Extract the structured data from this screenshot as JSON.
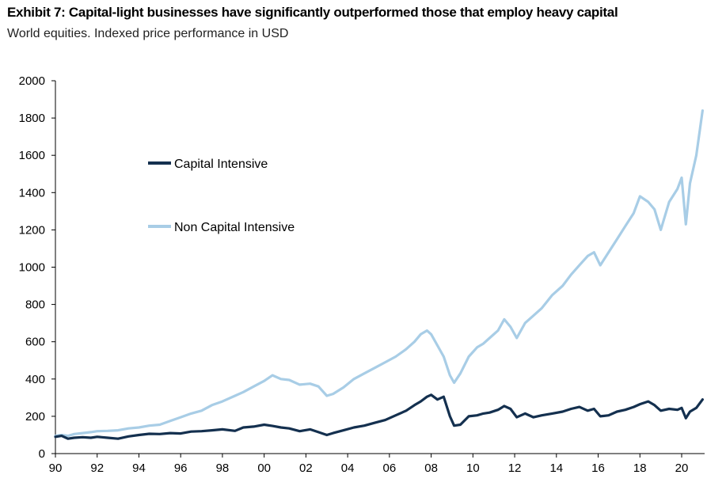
{
  "header": {
    "title": "Exhibit 7: Capital-light businesses have significantly outperformed those that employ heavy capital",
    "subtitle": "World equities. Indexed price performance in USD"
  },
  "colors": {
    "capital_intensive": "#14304f",
    "non_capital_intensive": "#a8cde6",
    "axis": "#000000"
  },
  "chart_data": {
    "type": "line",
    "title": "Exhibit 7: Capital-light businesses have significantly outperformed those that employ heavy capital",
    "subtitle": "World equities. Indexed price performance in USD",
    "xlabel": "",
    "ylabel": "",
    "xlim": [
      1990,
      2021.1
    ],
    "ylim": [
      0,
      2000
    ],
    "y_ticks": [
      0,
      200,
      400,
      600,
      800,
      1000,
      1200,
      1400,
      1600,
      1800,
      2000
    ],
    "x_ticks": [
      1990,
      1992,
      1994,
      1996,
      1998,
      2000,
      2002,
      2004,
      2006,
      2008,
      2010,
      2012,
      2014,
      2016,
      2018,
      2020
    ],
    "x_tick_labels": [
      "90",
      "92",
      "94",
      "96",
      "98",
      "00",
      "02",
      "04",
      "06",
      "08",
      "10",
      "12",
      "14",
      "16",
      "18",
      "20"
    ],
    "grid": false,
    "legend_position": "upper-left",
    "series": [
      {
        "name": "Capital Intensive",
        "x": [
          1990.0,
          1990.3,
          1990.6,
          1990.9,
          1991.3,
          1991.7,
          1992.0,
          1992.5,
          1993.0,
          1993.5,
          1994.0,
          1994.5,
          1995.0,
          1995.5,
          1996.0,
          1996.5,
          1997.0,
          1997.5,
          1998.0,
          1998.6,
          1999.0,
          1999.5,
          2000.0,
          2000.4,
          2000.8,
          2001.2,
          2001.7,
          2002.2,
          2002.6,
          2003.0,
          2003.3,
          2003.8,
          2004.3,
          2004.8,
          2005.3,
          2005.8,
          2006.3,
          2006.8,
          2007.2,
          2007.5,
          2007.8,
          2008.0,
          2008.3,
          2008.6,
          2008.9,
          2009.1,
          2009.4,
          2009.8,
          2010.2,
          2010.5,
          2010.8,
          2011.2,
          2011.5,
          2011.8,
          2012.1,
          2012.5,
          2012.9,
          2013.3,
          2013.8,
          2014.3,
          2014.7,
          2015.1,
          2015.5,
          2015.8,
          2016.1,
          2016.5,
          2016.9,
          2017.3,
          2017.7,
          2018.0,
          2018.4,
          2018.7,
          2019.0,
          2019.4,
          2019.8,
          2020.0,
          2020.2,
          2020.4,
          2020.7,
          2021.0
        ],
        "values": [
          90,
          95,
          80,
          85,
          88,
          85,
          90,
          85,
          80,
          92,
          100,
          106,
          105,
          110,
          108,
          118,
          120,
          125,
          130,
          122,
          140,
          145,
          155,
          148,
          140,
          135,
          120,
          130,
          115,
          100,
          110,
          125,
          140,
          150,
          165,
          180,
          205,
          230,
          260,
          280,
          305,
          315,
          290,
          305,
          200,
          150,
          155,
          200,
          205,
          215,
          220,
          235,
          255,
          240,
          195,
          215,
          195,
          205,
          215,
          225,
          240,
          250,
          230,
          240,
          200,
          205,
          225,
          235,
          250,
          265,
          280,
          260,
          230,
          240,
          235,
          245,
          190,
          225,
          245,
          290
        ]
      },
      {
        "name": "Non Capital Intensive",
        "x": [
          1990.0,
          1990.3,
          1990.6,
          1990.9,
          1991.3,
          1991.7,
          1992.0,
          1992.5,
          1993.0,
          1993.5,
          1994.0,
          1994.5,
          1995.0,
          1995.5,
          1996.0,
          1996.5,
          1997.0,
          1997.5,
          1998.0,
          1998.6,
          1999.0,
          1999.5,
          2000.0,
          2000.4,
          2000.8,
          2001.2,
          2001.7,
          2002.2,
          2002.6,
          2003.0,
          2003.3,
          2003.8,
          2004.3,
          2004.8,
          2005.3,
          2005.8,
          2006.3,
          2006.8,
          2007.2,
          2007.5,
          2007.8,
          2008.0,
          2008.3,
          2008.6,
          2008.9,
          2009.1,
          2009.4,
          2009.8,
          2010.2,
          2010.5,
          2010.8,
          2011.2,
          2011.5,
          2011.8,
          2012.1,
          2012.5,
          2012.9,
          2013.3,
          2013.8,
          2014.3,
          2014.7,
          2015.1,
          2015.5,
          2015.8,
          2016.1,
          2016.5,
          2016.9,
          2017.3,
          2017.7,
          2018.0,
          2018.4,
          2018.7,
          2019.0,
          2019.4,
          2019.8,
          2020.0,
          2020.2,
          2020.4,
          2020.7,
          2021.0
        ],
        "values": [
          95,
          100,
          95,
          105,
          110,
          115,
          120,
          122,
          125,
          135,
          140,
          150,
          155,
          175,
          195,
          215,
          230,
          260,
          280,
          310,
          330,
          360,
          390,
          420,
          400,
          395,
          370,
          375,
          360,
          310,
          320,
          355,
          400,
          430,
          460,
          490,
          520,
          560,
          600,
          640,
          660,
          640,
          580,
          520,
          420,
          380,
          430,
          520,
          570,
          590,
          620,
          660,
          720,
          680,
          620,
          700,
          740,
          780,
          850,
          900,
          960,
          1010,
          1060,
          1080,
          1010,
          1080,
          1150,
          1220,
          1290,
          1380,
          1350,
          1310,
          1200,
          1350,
          1420,
          1480,
          1230,
          1450,
          1600,
          1840
        ]
      }
    ]
  }
}
